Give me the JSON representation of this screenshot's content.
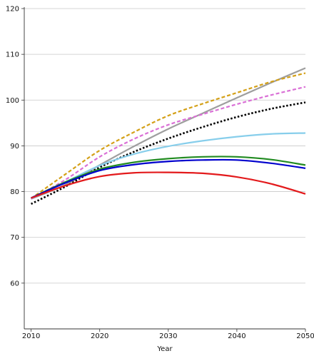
{
  "chart_data": {
    "type": "line",
    "title": "",
    "xlabel": "Year",
    "ylabel": "",
    "xlim": [
      2009,
      2050
    ],
    "ylim": [
      50,
      120
    ],
    "x_ticks": [
      2010,
      2020,
      2030,
      2040,
      2050
    ],
    "y_ticks": [
      60,
      70,
      80,
      90,
      100,
      110,
      120
    ],
    "grid": "horizontal",
    "legend": "none",
    "series": [
      {
        "color": "#9e9e9e",
        "style": "solid",
        "x": [
          2010,
          2015,
          2020,
          2025,
          2030,
          2035,
          2040,
          2045,
          2050
        ],
        "values": [
          78.4,
          81.5,
          85.8,
          89.9,
          93.7,
          97.1,
          100.5,
          103.8,
          107.0
        ]
      },
      {
        "color": "#d4a017",
        "style": "dashed",
        "x": [
          2010,
          2015,
          2020,
          2025,
          2030,
          2035,
          2040,
          2045,
          2050
        ],
        "values": [
          78.5,
          83.8,
          89.0,
          93.0,
          96.6,
          99.2,
          101.6,
          104.0,
          105.9
        ]
      },
      {
        "color": "#da70d6",
        "style": "dashed",
        "x": [
          2010,
          2015,
          2020,
          2025,
          2030,
          2035,
          2040,
          2045,
          2050
        ],
        "values": [
          78.4,
          82.6,
          87.6,
          91.5,
          94.6,
          96.9,
          99.1,
          101.1,
          102.9
        ]
      },
      {
        "color": "#000000",
        "style": "dotted",
        "x": [
          2010,
          2015,
          2020,
          2025,
          2030,
          2035,
          2040,
          2045,
          2050
        ],
        "values": [
          77.3,
          81.1,
          85.3,
          88.7,
          91.6,
          94.1,
          96.3,
          98.1,
          99.5
        ]
      },
      {
        "color": "#87ceeb",
        "style": "solid",
        "x": [
          2010,
          2015,
          2020,
          2025,
          2030,
          2035,
          2040,
          2045,
          2050
        ],
        "values": [
          78.5,
          82.1,
          85.7,
          88.2,
          89.9,
          91.1,
          92.0,
          92.6,
          92.8
        ]
      },
      {
        "color": "#228b22",
        "style": "solid",
        "x": [
          2010,
          2015,
          2020,
          2025,
          2030,
          2035,
          2040,
          2045,
          2050
        ],
        "values": [
          78.6,
          82.1,
          84.9,
          86.4,
          87.2,
          87.6,
          87.6,
          87.0,
          85.8
        ]
      },
      {
        "color": "#0000cd",
        "style": "solid",
        "x": [
          2010,
          2015,
          2020,
          2025,
          2030,
          2035,
          2040,
          2045,
          2050
        ],
        "values": [
          78.6,
          81.9,
          84.6,
          85.9,
          86.6,
          86.9,
          86.9,
          86.2,
          85.1
        ]
      },
      {
        "color": "#e31a1c",
        "style": "solid",
        "x": [
          2010,
          2015,
          2020,
          2025,
          2030,
          2035,
          2040,
          2045,
          2050
        ],
        "values": [
          78.6,
          81.3,
          83.3,
          84.1,
          84.2,
          84.0,
          83.2,
          81.7,
          79.5
        ]
      }
    ]
  }
}
